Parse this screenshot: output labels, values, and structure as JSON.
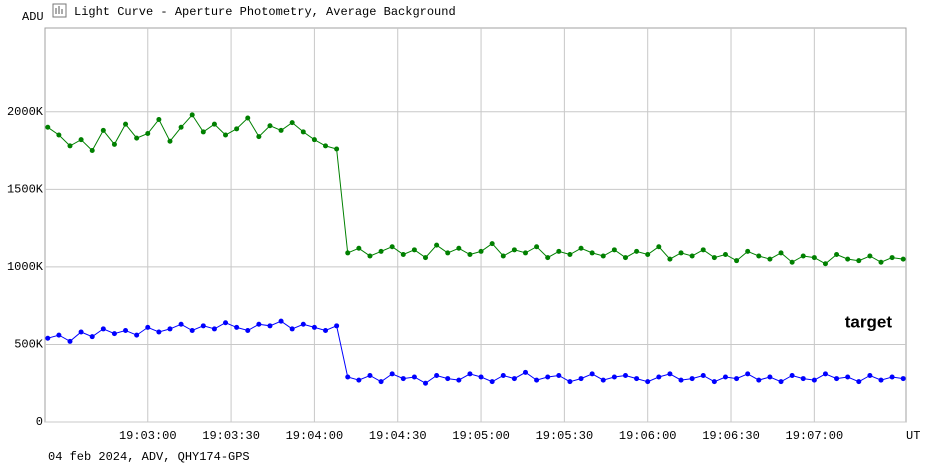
{
  "chart_data": {
    "type": "line",
    "title": "Light Curve - Aperture Photometry, Average Background",
    "y_label": "ADU",
    "x_label": "UT",
    "footer": "04 feb 2024, ADV, QHY174-GPS",
    "x": [
      "19:02:24",
      "19:02:28",
      "19:02:32",
      "19:02:36",
      "19:02:40",
      "19:02:44",
      "19:02:48",
      "19:02:52",
      "19:02:56",
      "19:03:00",
      "19:03:04",
      "19:03:08",
      "19:03:12",
      "19:03:16",
      "19:03:20",
      "19:03:24",
      "19:03:28",
      "19:03:32",
      "19:03:36",
      "19:03:40",
      "19:03:44",
      "19:03:48",
      "19:03:52",
      "19:03:56",
      "19:04:00",
      "19:04:04",
      "19:04:08",
      "19:04:12",
      "19:04:16",
      "19:04:20",
      "19:04:24",
      "19:04:28",
      "19:04:32",
      "19:04:36",
      "19:04:40",
      "19:04:44",
      "19:04:48",
      "19:04:52",
      "19:04:56",
      "19:05:00",
      "19:05:04",
      "19:05:08",
      "19:05:12",
      "19:05:16",
      "19:05:20",
      "19:05:24",
      "19:05:28",
      "19:05:32",
      "19:05:36",
      "19:05:40",
      "19:05:44",
      "19:05:48",
      "19:05:52",
      "19:05:56",
      "19:06:00",
      "19:06:04",
      "19:06:08",
      "19:06:12",
      "19:06:16",
      "19:06:20",
      "19:06:24",
      "19:06:28",
      "19:06:32",
      "19:06:36",
      "19:06:40",
      "19:06:44",
      "19:06:48",
      "19:06:52",
      "19:06:56",
      "19:07:00",
      "19:07:04",
      "19:07:08",
      "19:07:12",
      "19:07:16",
      "19:07:20",
      "19:07:24",
      "19:07:28",
      "19:07:32"
    ],
    "series": [
      {
        "color": "#008000",
        "values": [
          1900000,
          1850000,
          1780000,
          1820000,
          1750000,
          1880000,
          1790000,
          1920000,
          1830000,
          1860000,
          1950000,
          1810000,
          1900000,
          1980000,
          1870000,
          1920000,
          1850000,
          1890000,
          1960000,
          1840000,
          1910000,
          1880000,
          1930000,
          1870000,
          1820000,
          1780000,
          1760000,
          1090000,
          1120000,
          1070000,
          1100000,
          1130000,
          1080000,
          1110000,
          1060000,
          1140000,
          1090000,
          1120000,
          1080000,
          1100000,
          1150000,
          1070000,
          1110000,
          1090000,
          1130000,
          1060000,
          1100000,
          1080000,
          1120000,
          1090000,
          1070000,
          1110000,
          1060000,
          1100000,
          1080000,
          1130000,
          1050000,
          1090000,
          1070000,
          1110000,
          1060000,
          1080000,
          1040000,
          1100000,
          1070000,
          1050000,
          1090000,
          1030000,
          1070000,
          1060000,
          1020000,
          1080000,
          1050000,
          1040000,
          1070000,
          1030000,
          1060000,
          1050000
        ]
      },
      {
        "name": "target",
        "color": "#0000ff",
        "values": [
          540000,
          560000,
          520000,
          580000,
          550000,
          600000,
          570000,
          590000,
          560000,
          610000,
          580000,
          600000,
          630000,
          590000,
          620000,
          600000,
          640000,
          610000,
          590000,
          630000,
          620000,
          650000,
          600000,
          630000,
          610000,
          590000,
          620000,
          290000,
          270000,
          300000,
          260000,
          310000,
          280000,
          290000,
          250000,
          300000,
          280000,
          270000,
          310000,
          290000,
          260000,
          300000,
          280000,
          320000,
          270000,
          290000,
          300000,
          260000,
          280000,
          310000,
          270000,
          290000,
          300000,
          280000,
          260000,
          290000,
          310000,
          270000,
          280000,
          300000,
          260000,
          290000,
          280000,
          310000,
          270000,
          290000,
          260000,
          300000,
          280000,
          270000,
          310000,
          280000,
          290000,
          260000,
          300000,
          270000,
          290000,
          280000
        ]
      }
    ],
    "xlim": [
      "19:02:23",
      "19:07:33"
    ],
    "xticks": [
      "19:03:00",
      "19:03:30",
      "19:04:00",
      "19:04:30",
      "19:05:00",
      "19:05:30",
      "19:06:00",
      "19:06:30",
      "19:07:00"
    ],
    "ylim": [
      0,
      2540000
    ],
    "yticks": [
      0,
      {
        "value": 500000,
        "label": "500K"
      },
      {
        "value": 1000000,
        "label": "1000K"
      },
      {
        "value": 1500000,
        "label": "1500K"
      },
      {
        "value": 2000000,
        "label": "2000K"
      }
    ],
    "grid": true
  }
}
